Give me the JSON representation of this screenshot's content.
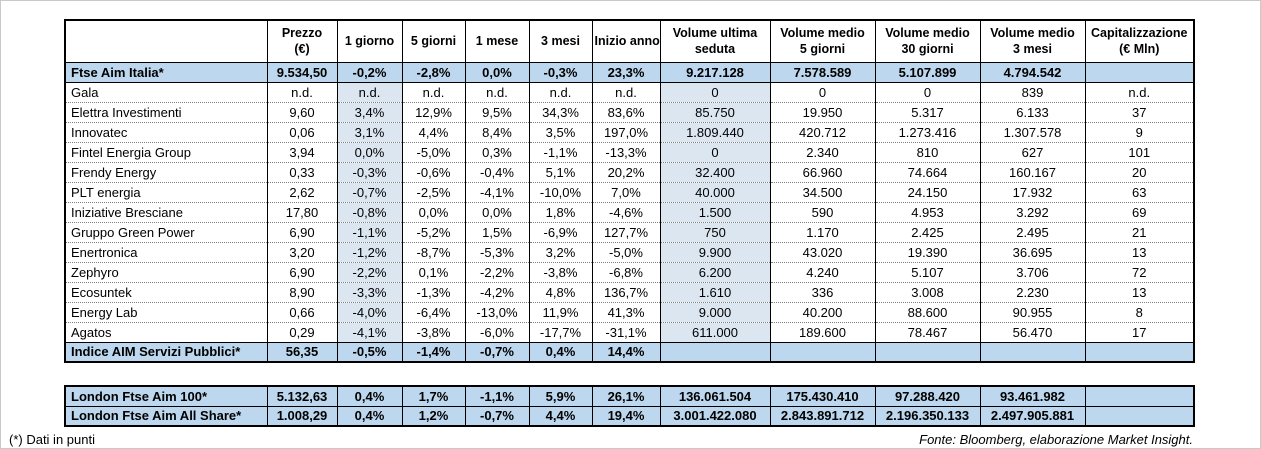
{
  "chart_data": {
    "type": "table",
    "columns": [
      "",
      "Prezzo\n(€)",
      "1 giorno",
      "5 giorni",
      "1 mese",
      "3 mesi",
      "Inizio anno",
      "Volume ultima\nseduta",
      "Volume medio\n5 giorni",
      "Volume medio\n30 giorni",
      "Volume medio\n3 mesi",
      "Capitalizzazione\n(€ Mln)"
    ],
    "rows": [
      {
        "name": "Ftse Aim Italia*",
        "type": "index",
        "values": [
          "9.534,50",
          "-0,2%",
          "-2,8%",
          "0,0%",
          "-0,3%",
          "23,3%",
          "9.217.128",
          "7.578.589",
          "5.107.899",
          "4.794.542",
          ""
        ]
      },
      {
        "name": "Gala",
        "type": "stock",
        "values": [
          "n.d.",
          "n.d.",
          "n.d.",
          "n.d.",
          "n.d.",
          "n.d.",
          "0",
          "0",
          "0",
          "839",
          "n.d."
        ]
      },
      {
        "name": "Elettra Investimenti",
        "type": "stock",
        "values": [
          "9,60",
          "3,4%",
          "12,9%",
          "9,5%",
          "34,3%",
          "83,6%",
          "85.750",
          "19.950",
          "5.317",
          "6.133",
          "37"
        ]
      },
      {
        "name": "Innovatec",
        "type": "stock",
        "values": [
          "0,06",
          "3,1%",
          "4,4%",
          "8,4%",
          "3,5%",
          "197,0%",
          "1.809.440",
          "420.712",
          "1.273.416",
          "1.307.578",
          "9"
        ]
      },
      {
        "name": "Fintel Energia Group",
        "type": "stock",
        "values": [
          "3,94",
          "0,0%",
          "-5,0%",
          "0,3%",
          "-1,1%",
          "-13,3%",
          "0",
          "2.340",
          "810",
          "627",
          "101"
        ]
      },
      {
        "name": "Frendy Energy",
        "type": "stock",
        "values": [
          "0,33",
          "-0,3%",
          "-0,6%",
          "-0,4%",
          "5,1%",
          "20,2%",
          "32.400",
          "66.960",
          "74.664",
          "160.167",
          "20"
        ]
      },
      {
        "name": "PLT energia",
        "type": "stock",
        "values": [
          "2,62",
          "-0,7%",
          "-2,5%",
          "-4,1%",
          "-10,0%",
          "7,0%",
          "40.000",
          "34.500",
          "24.150",
          "17.932",
          "63"
        ]
      },
      {
        "name": "Iniziative Bresciane",
        "type": "stock",
        "values": [
          "17,80",
          "-0,8%",
          "0,0%",
          "0,0%",
          "1,8%",
          "-4,6%",
          "1.500",
          "590",
          "4.953",
          "3.292",
          "69"
        ]
      },
      {
        "name": "Gruppo Green Power",
        "type": "stock",
        "values": [
          "6,90",
          "-1,1%",
          "-5,2%",
          "1,5%",
          "-6,9%",
          "127,7%",
          "750",
          "1.170",
          "2.425",
          "2.495",
          "21"
        ]
      },
      {
        "name": "Enertronica",
        "type": "stock",
        "values": [
          "3,20",
          "-1,2%",
          "-8,7%",
          "-5,3%",
          "3,2%",
          "-5,0%",
          "9.900",
          "43.020",
          "19.390",
          "36.695",
          "13"
        ]
      },
      {
        "name": "Zephyro",
        "type": "stock",
        "values": [
          "6,90",
          "-2,2%",
          "0,1%",
          "-2,2%",
          "-3,8%",
          "-6,8%",
          "6.200",
          "4.240",
          "5.107",
          "3.706",
          "72"
        ]
      },
      {
        "name": "Ecosuntek",
        "type": "stock",
        "values": [
          "8,90",
          "-3,3%",
          "-1,3%",
          "-4,2%",
          "4,8%",
          "136,7%",
          "1.610",
          "336",
          "3.008",
          "2.230",
          "13"
        ]
      },
      {
        "name": "Energy Lab",
        "type": "stock",
        "values": [
          "0,66",
          "-4,0%",
          "-6,4%",
          "-13,0%",
          "11,9%",
          "41,3%",
          "9.000",
          "40.200",
          "88.600",
          "90.955",
          "8"
        ]
      },
      {
        "name": "Agatos",
        "type": "stock",
        "values": [
          "0,29",
          "-4,1%",
          "-3,8%",
          "-6,0%",
          "-17,7%",
          "-31,1%",
          "611.000",
          "189.600",
          "78.467",
          "56.470",
          "17"
        ]
      },
      {
        "name": "Indice AIM Servizi Pubblici*",
        "type": "index",
        "values": [
          "56,35",
          "-0,5%",
          "-1,4%",
          "-0,7%",
          "0,4%",
          "14,4%",
          "",
          "",
          "",
          "",
          ""
        ]
      }
    ],
    "london_rows": [
      {
        "name": "London Ftse Aim 100*",
        "type": "index",
        "values": [
          "5.132,63",
          "0,4%",
          "1,7%",
          "-1,1%",
          "5,9%",
          "26,1%",
          "136.061.504",
          "175.430.410",
          "97.288.420",
          "93.461.982",
          ""
        ]
      },
      {
        "name": "London Ftse Aim All Share*",
        "type": "index",
        "values": [
          "1.008,29",
          "0,4%",
          "1,2%",
          "-0,7%",
          "4,4%",
          "19,4%",
          "3.001.422.080",
          "2.843.891.712",
          "2.196.350.133",
          "2.497.905.881",
          ""
        ]
      }
    ],
    "footnote": "(*) Dati in punti",
    "source": "Fonte: Bloomberg, elaborazione Market Insight.",
    "colors": {
      "index_row_bg": "#bdd7ee",
      "shaded_column_bg": "#dce6f1",
      "border": "#000000"
    }
  }
}
